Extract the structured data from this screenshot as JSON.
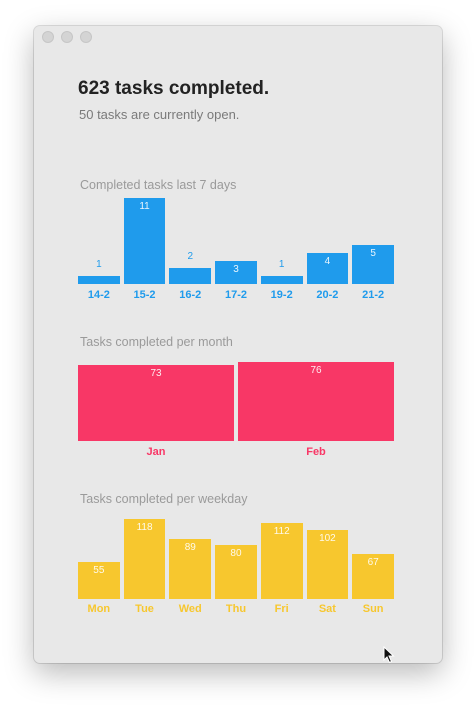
{
  "window": {
    "headline": "623 tasks completed.",
    "subline": "50 tasks are currently open."
  },
  "colors": {
    "daily": "#1f9bec",
    "monthly": "#f83766",
    "weekday": "#f7c72e"
  },
  "icons": [
    "close-icon",
    "minimize-icon",
    "zoom-icon",
    "mouse-pointer-icon"
  ],
  "chart_data": [
    {
      "type": "bar",
      "title": "Completed tasks last 7 days",
      "categories": [
        "14-2",
        "15-2",
        "16-2",
        "17-2",
        "19-2",
        "20-2",
        "21-2"
      ],
      "values": [
        1,
        11,
        2,
        3,
        1,
        4,
        5
      ],
      "ylim": [
        0,
        11
      ]
    },
    {
      "type": "bar",
      "title": "Tasks completed per month",
      "categories": [
        "Jan",
        "Feb"
      ],
      "values": [
        73,
        76
      ],
      "ylim": [
        0,
        76
      ]
    },
    {
      "type": "bar",
      "title": "Tasks completed per weekday",
      "categories": [
        "Mon",
        "Tue",
        "Wed",
        "Thu",
        "Fri",
        "Sat",
        "Sun"
      ],
      "values": [
        55,
        118,
        89,
        80,
        112,
        102,
        67
      ],
      "ylim": [
        0,
        118
      ]
    }
  ]
}
